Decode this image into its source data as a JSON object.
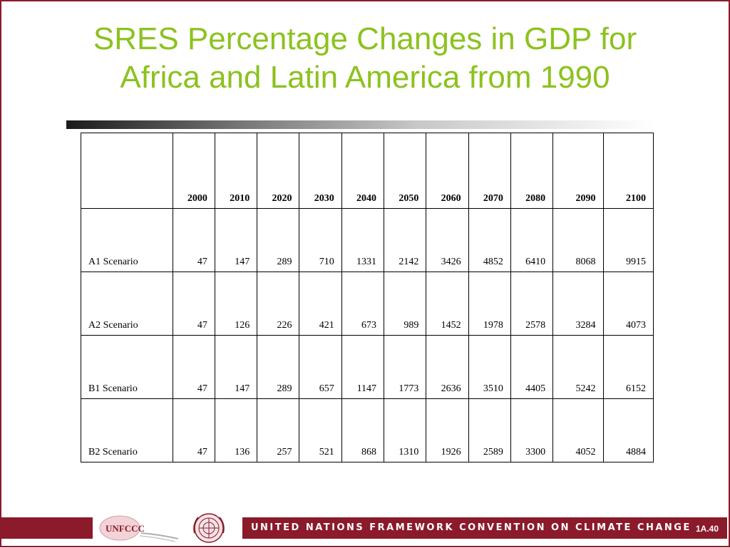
{
  "slide": {
    "title_line1": "SRES Percentage Changes in GDP for",
    "title_line2": "Africa and Latin America from 1990"
  },
  "colors": {
    "title": "#8cc21e",
    "frame": "#8b1a2b",
    "footer_band": "#8b1a2b"
  },
  "table": {
    "corner_label": "",
    "years": [
      "2000",
      "2010",
      "2020",
      "2030",
      "2040",
      "2050",
      "2060",
      "2070",
      "2080",
      "2090",
      "2100"
    ],
    "rows": [
      {
        "label": "A1 Scenario",
        "values": [
          "47",
          "147",
          "289",
          "710",
          "1331",
          "2142",
          "3426",
          "4852",
          "6410",
          "8068",
          "9915"
        ]
      },
      {
        "label": "A2 Scenario",
        "values": [
          "47",
          "126",
          "226",
          "421",
          "673",
          "989",
          "1452",
          "1978",
          "2578",
          "3284",
          "4073"
        ]
      },
      {
        "label": "B1 Scenario",
        "values": [
          "47",
          "147",
          "289",
          "657",
          "1147",
          "1773",
          "2636",
          "3510",
          "4405",
          "5242",
          "6152"
        ]
      },
      {
        "label": "B2 Scenario",
        "values": [
          "47",
          "136",
          "257",
          "521",
          "868",
          "1310",
          "1926",
          "2589",
          "3300",
          "4052",
          "4884"
        ]
      }
    ]
  },
  "footer": {
    "logo_text": "UNFCCC",
    "banner_text": "UNITED NATIONS FRAMEWORK CONVENTION ON CLIMATE CHANGE",
    "page_number": "1A.40",
    "icons": [
      "unfccc-logo-icon",
      "un-emblem-icon"
    ]
  }
}
